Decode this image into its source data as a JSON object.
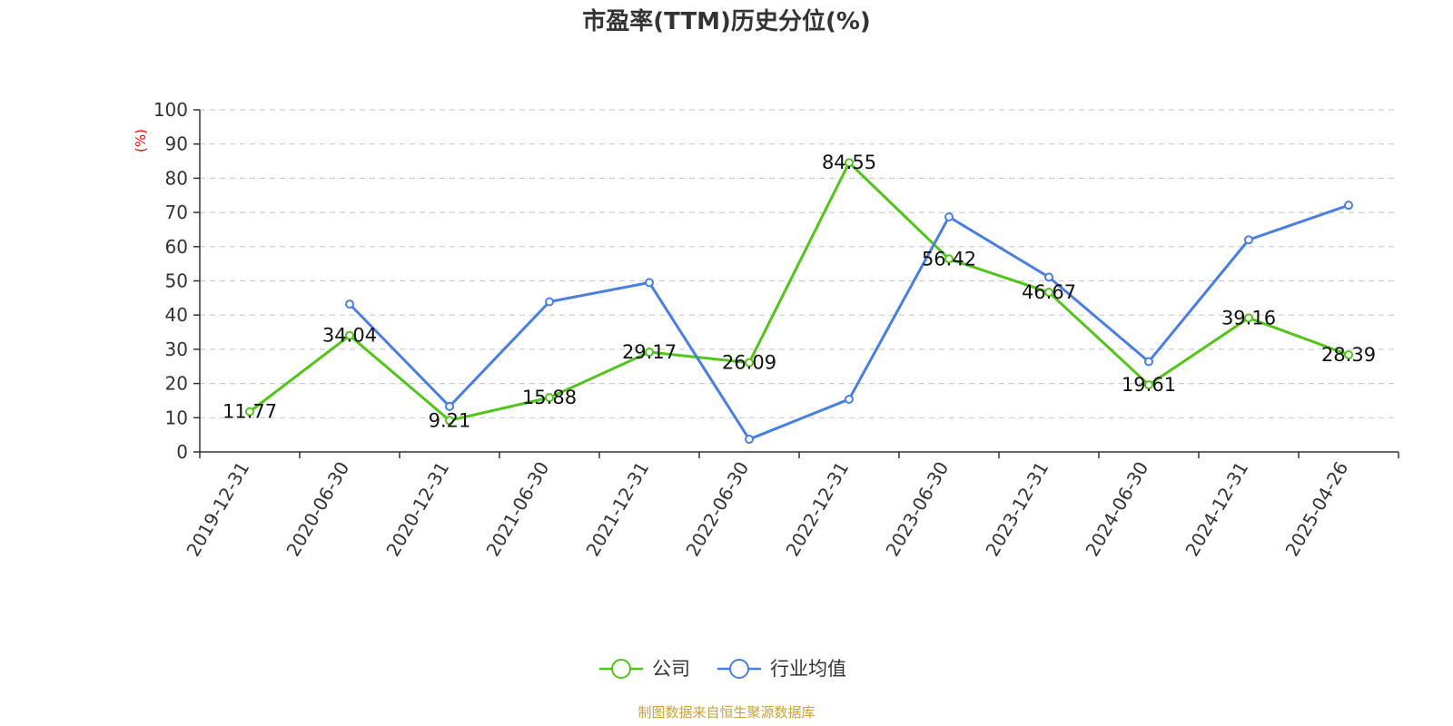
{
  "colors": {
    "company": "#52c41a",
    "industry": "#4a7ee0",
    "grid": "#cccccc",
    "axis": "#333333",
    "ylabel": "#ff0000",
    "source": "#c9a23a"
  },
  "source_text": "制图数据来自恒生聚源数据库",
  "chart_data": {
    "type": "line",
    "title": "市盈率(TTM)历史分位(%)",
    "ylabel": "(%)",
    "xlabel": "",
    "ylim": [
      0,
      100
    ],
    "yticks": [
      0,
      10,
      20,
      30,
      40,
      50,
      60,
      70,
      80,
      90,
      100
    ],
    "grid": true,
    "legend_position": "bottom-center",
    "categories": [
      "2019-12-31",
      "2020-06-30",
      "2020-12-31",
      "2021-06-30",
      "2021-12-31",
      "2022-06-30",
      "2022-12-31",
      "2023-06-30",
      "2023-12-31",
      "2024-06-30",
      "2024-12-31",
      "2025-04-26"
    ],
    "series": [
      {
        "name": "公司",
        "color": "#52c41a",
        "show_labels": true,
        "values": [
          11.77,
          34.04,
          9.21,
          15.88,
          29.17,
          26.09,
          84.55,
          56.42,
          46.67,
          19.61,
          39.16,
          28.39
        ]
      },
      {
        "name": "行业均值",
        "color": "#4a7ee0",
        "show_labels": false,
        "values": [
          null,
          43.2,
          13.3,
          43.9,
          49.5,
          3.7,
          15.4,
          68.7,
          51.1,
          26.4,
          62.0,
          72.1
        ]
      }
    ]
  }
}
